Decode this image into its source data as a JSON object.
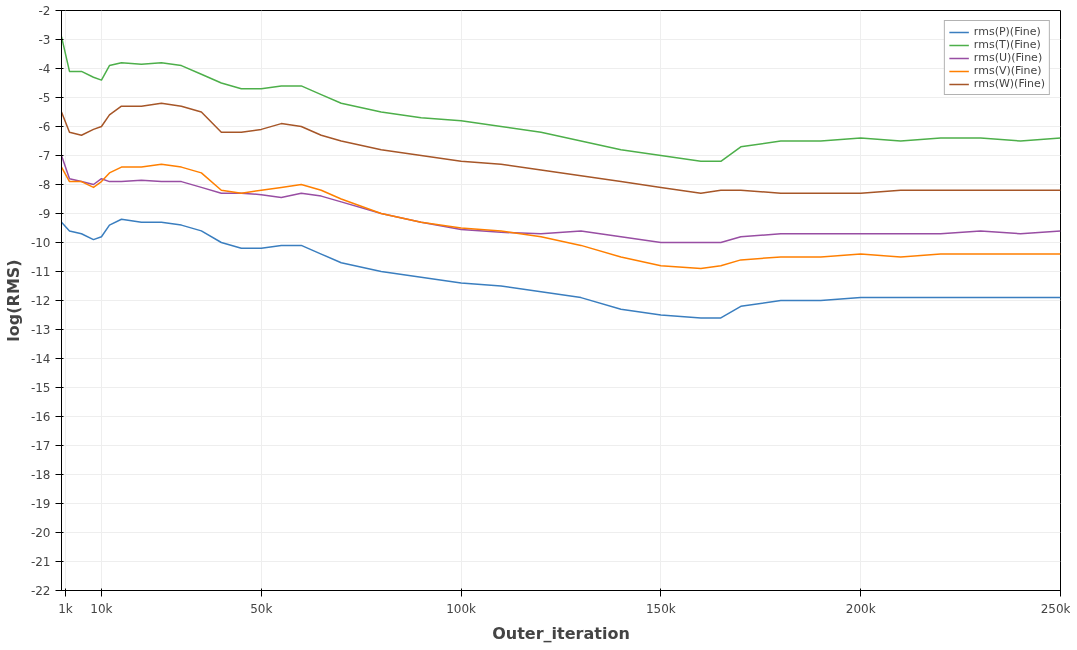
{
  "chart_data": {
    "type": "line",
    "xlabel": "Outer_iteration",
    "ylabel": "log(RMS)",
    "legend": "top right",
    "grid": true,
    "marker": "none",
    "line_style": "solid",
    "x": [
      0,
      2000,
      5000,
      8000,
      10000,
      12000,
      15000,
      20000,
      25000,
      30000,
      35000,
      40000,
      45000,
      50000,
      55000,
      60000,
      65000,
      70000,
      80000,
      90000,
      100000,
      110000,
      120000,
      130000,
      140000,
      150000,
      160000,
      165000,
      170000,
      180000,
      190000,
      200000,
      210000,
      220000,
      230000,
      240000,
      250000
    ],
    "xlim": [
      0,
      250000
    ],
    "ylim": [
      -22,
      -2
    ],
    "xticks": [
      {
        "value": 1000,
        "label": "1k"
      },
      {
        "value": 10000,
        "label": "10k"
      },
      {
        "value": 50000,
        "label": "50k"
      },
      {
        "value": 100000,
        "label": "100k"
      },
      {
        "value": 150000,
        "label": "150k"
      },
      {
        "value": 200000,
        "label": "200k"
      },
      {
        "value": 250000,
        "label": "250k"
      }
    ],
    "yticks": [
      -2,
      -3,
      -4,
      -5,
      -6,
      -7,
      -8,
      -9,
      -10,
      -11,
      -12,
      -13,
      -14,
      -15,
      -16,
      -17,
      -18,
      -19,
      -20,
      -21,
      -22
    ],
    "series": [
      {
        "name": "rms(P)(Fine)",
        "color": "#3a7ebf",
        "values": [
          -9.3,
          -9.6,
          -9.7,
          -9.9,
          -9.8,
          -9.4,
          -9.2,
          -9.3,
          -9.3,
          -9.4,
          -9.6,
          -10.0,
          -10.2,
          -10.2,
          -10.1,
          -10.1,
          -10.4,
          -10.7,
          -11.0,
          -11.2,
          -11.4,
          -11.5,
          -11.7,
          -11.9,
          -12.3,
          -12.5,
          -12.6,
          -12.6,
          -12.2,
          -12.0,
          -12.0,
          -11.9,
          -11.9,
          -11.9,
          -11.9,
          -11.9,
          -11.9
        ]
      },
      {
        "name": "rms(T)(Fine)",
        "color": "#4daf4a",
        "values": [
          -2.9,
          -4.1,
          -4.1,
          -4.3,
          -4.4,
          -3.9,
          -3.8,
          -3.85,
          -3.8,
          -3.9,
          -4.2,
          -4.5,
          -4.7,
          -4.7,
          -4.6,
          -4.6,
          -4.9,
          -5.2,
          -5.5,
          -5.7,
          -5.8,
          -6.0,
          -6.2,
          -6.5,
          -6.8,
          -7.0,
          -7.2,
          -7.2,
          -6.7,
          -6.5,
          -6.5,
          -6.4,
          -6.5,
          -6.4,
          -6.4,
          -6.5,
          -6.4
        ]
      },
      {
        "name": "rms(U)(Fine)",
        "color": "#984ea3",
        "values": [
          -7.0,
          -7.8,
          -7.9,
          -8.0,
          -7.8,
          -7.9,
          -7.9,
          -7.85,
          -7.9,
          -7.9,
          -8.1,
          -8.3,
          -8.3,
          -8.35,
          -8.45,
          -8.3,
          -8.4,
          -8.6,
          -9.0,
          -9.3,
          -9.55,
          -9.65,
          -9.7,
          -9.6,
          -9.8,
          -10.0,
          -10.0,
          -10.0,
          -9.8,
          -9.7,
          -9.7,
          -9.7,
          -9.7,
          -9.7,
          -9.6,
          -9.7,
          -9.6
        ]
      },
      {
        "name": "rms(V)(Fine)",
        "color": "#ff7f00",
        "values": [
          -7.4,
          -7.9,
          -7.9,
          -8.1,
          -7.9,
          -7.6,
          -7.4,
          -7.4,
          -7.3,
          -7.4,
          -7.6,
          -8.2,
          -8.3,
          -8.2,
          -8.1,
          -8.0,
          -8.2,
          -8.5,
          -9.0,
          -9.3,
          -9.5,
          -9.6,
          -9.8,
          -10.1,
          -10.5,
          -10.8,
          -10.9,
          -10.8,
          -10.6,
          -10.5,
          -10.5,
          -10.4,
          -10.5,
          -10.4,
          -10.4,
          -10.4,
          -10.4
        ]
      },
      {
        "name": "rms(W)(Fine)",
        "color": "#a65628",
        "values": [
          -5.5,
          -6.2,
          -6.3,
          -6.1,
          -6.0,
          -5.6,
          -5.3,
          -5.3,
          -5.2,
          -5.3,
          -5.5,
          -6.2,
          -6.2,
          -6.1,
          -5.9,
          -6.0,
          -6.3,
          -6.5,
          -6.8,
          -7.0,
          -7.2,
          -7.3,
          -7.5,
          -7.7,
          -7.9,
          -8.1,
          -8.3,
          -8.2,
          -8.2,
          -8.3,
          -8.3,
          -8.3,
          -8.2,
          -8.2,
          -8.2,
          -8.2,
          -8.2
        ]
      }
    ]
  }
}
